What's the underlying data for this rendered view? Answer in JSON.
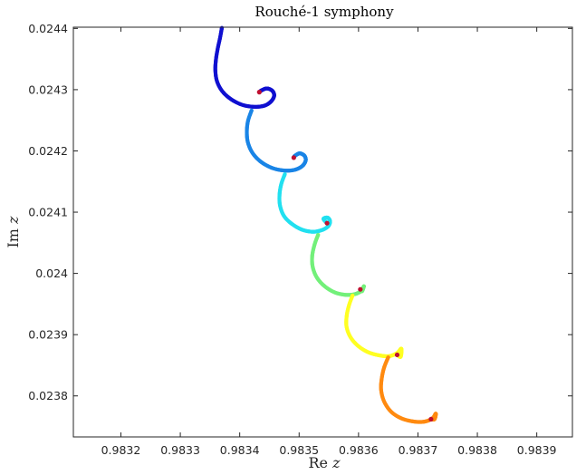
{
  "chart_data": {
    "type": "scatter",
    "title": "Rouché-1 symphony",
    "xlabel_text": "Re ",
    "xlabel_var": "z",
    "ylabel_text": "Im ",
    "ylabel_var": "z",
    "xlim": [
      0.98312,
      0.98396
    ],
    "ylim": [
      0.023733,
      0.024402
    ],
    "grid": false,
    "legend": "none",
    "xticks": [
      0.9832,
      0.9833,
      0.9834,
      0.9835,
      0.9836,
      0.9837,
      0.9838,
      0.9839
    ],
    "xtick_labels": [
      "0.9832",
      "0.9833",
      "0.9834",
      "0.9835",
      "0.9836",
      "0.9837",
      "0.9838",
      "0.9839"
    ],
    "yticks": [
      0.0238,
      0.0239,
      0.024,
      0.0241,
      0.0242,
      0.0243,
      0.0244
    ],
    "ytick_labels": [
      "0.0238",
      "0.0239",
      "0.024",
      "0.0241",
      "0.0242",
      "0.0243",
      "0.0244"
    ],
    "series": [
      {
        "color": "#1010d0",
        "marker_color": "#c01030",
        "points": [
          [
            0.98337,
            0.024401
          ],
          [
            0.983367,
            0.024385
          ],
          [
            0.983363,
            0.024367
          ],
          [
            0.98336,
            0.024349
          ],
          [
            0.983359,
            0.024331
          ],
          [
            0.983362,
            0.024313
          ],
          [
            0.983371,
            0.024297
          ],
          [
            0.983386,
            0.024284
          ],
          [
            0.983405,
            0.024275
          ],
          [
            0.983425,
            0.024272
          ],
          [
            0.983442,
            0.024274
          ],
          [
            0.983453,
            0.024281
          ],
          [
            0.983458,
            0.02429
          ],
          [
            0.983455,
            0.024298
          ],
          [
            0.983446,
            0.024302
          ],
          [
            0.983437,
            0.024299
          ],
          [
            0.983433,
            0.024296
          ]
        ]
      },
      {
        "color": "#1a85e6",
        "marker_color": "#c01030",
        "points": [
          [
            0.98342,
            0.024266
          ],
          [
            0.983414,
            0.024249
          ],
          [
            0.983412,
            0.024231
          ],
          [
            0.983414,
            0.024213
          ],
          [
            0.983422,
            0.024196
          ],
          [
            0.983436,
            0.024182
          ],
          [
            0.983455,
            0.024172
          ],
          [
            0.983475,
            0.024168
          ],
          [
            0.983492,
            0.024169
          ],
          [
            0.983505,
            0.024175
          ],
          [
            0.983511,
            0.024184
          ],
          [
            0.983509,
            0.024192
          ],
          [
            0.983501,
            0.024196
          ],
          [
            0.983493,
            0.024192
          ],
          [
            0.983491,
            0.024189
          ]
        ]
      },
      {
        "color": "#22e0f0",
        "marker_color": "#c01030",
        "points": [
          [
            0.983476,
            0.024162
          ],
          [
            0.98347,
            0.024146
          ],
          [
            0.983467,
            0.024128
          ],
          [
            0.983468,
            0.02411
          ],
          [
            0.983475,
            0.024093
          ],
          [
            0.983489,
            0.02408
          ],
          [
            0.983506,
            0.024071
          ],
          [
            0.983524,
            0.024068
          ],
          [
            0.983539,
            0.024071
          ],
          [
            0.983549,
            0.024077
          ],
          [
            0.983552,
            0.024085
          ],
          [
            0.983548,
            0.024091
          ],
          [
            0.983541,
            0.024089
          ],
          [
            0.983547,
            0.024082
          ]
        ]
      },
      {
        "color": "#73f07a",
        "marker_color": "#c01030",
        "points": [
          [
            0.983532,
            0.024063
          ],
          [
            0.983526,
            0.024047
          ],
          [
            0.983522,
            0.024028
          ],
          [
            0.983523,
            0.02401
          ],
          [
            0.98353,
            0.023993
          ],
          [
            0.983543,
            0.023979
          ],
          [
            0.98356,
            0.023969
          ],
          [
            0.983578,
            0.023965
          ],
          [
            0.983593,
            0.023966
          ],
          [
            0.983604,
            0.023971
          ],
          [
            0.983609,
            0.023979
          ],
          [
            0.983606,
            0.023971
          ],
          [
            0.983603,
            0.023974
          ]
        ]
      },
      {
        "color": "#ffff22",
        "marker_color": "#c01030",
        "points": [
          [
            0.98359,
            0.023964
          ],
          [
            0.983584,
            0.023948
          ],
          [
            0.98358,
            0.02393
          ],
          [
            0.98358,
            0.023912
          ],
          [
            0.983587,
            0.023895
          ],
          [
            0.9836,
            0.023881
          ],
          [
            0.983617,
            0.023871
          ],
          [
            0.983636,
            0.023866
          ],
          [
            0.983652,
            0.023865
          ],
          [
            0.983665,
            0.02387
          ],
          [
            0.983672,
            0.023877
          ],
          [
            0.983671,
            0.023864
          ],
          [
            0.983665,
            0.023867
          ]
        ]
      },
      {
        "color": "#ff8a10",
        "marker_color": "#c01030",
        "points": [
          [
            0.98365,
            0.023863
          ],
          [
            0.983643,
            0.023846
          ],
          [
            0.983639,
            0.023828
          ],
          [
            0.983638,
            0.02381
          ],
          [
            0.983643,
            0.023791
          ],
          [
            0.983655,
            0.023774
          ],
          [
            0.983673,
            0.023763
          ],
          [
            0.983694,
            0.023758
          ],
          [
            0.983711,
            0.023758
          ],
          [
            0.983724,
            0.023763
          ],
          [
            0.98373,
            0.023771
          ],
          [
            0.983728,
            0.023762
          ],
          [
            0.983722,
            0.023762
          ]
        ]
      }
    ]
  }
}
